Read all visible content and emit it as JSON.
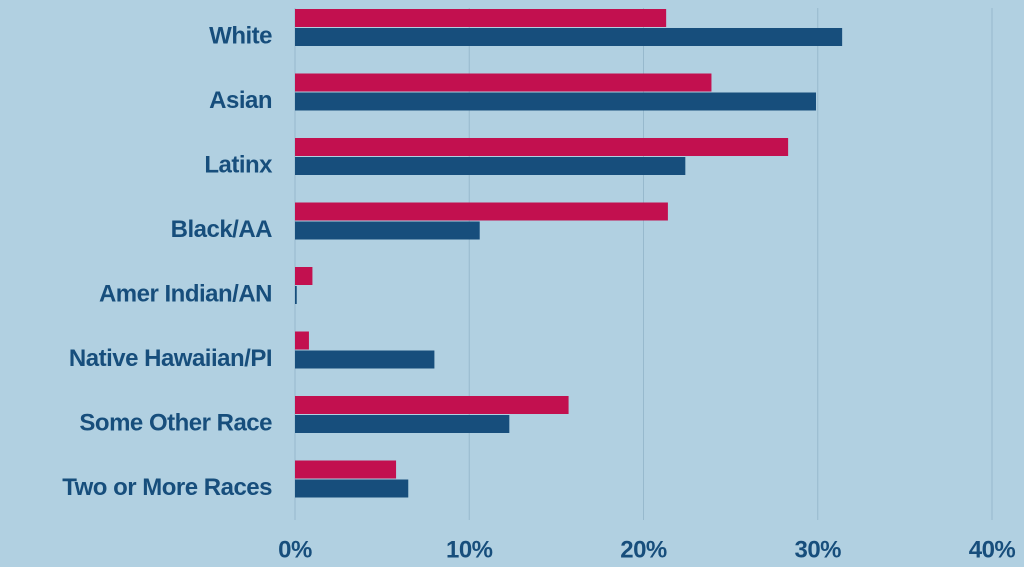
{
  "chart_data": {
    "type": "hbar",
    "categories": [
      "White",
      "Asian",
      "Latinx",
      "Black/AA",
      "Amer Indian/AN",
      "Native Hawaiian/PI",
      "Some Other Race",
      "Two or More Races"
    ],
    "series": [
      {
        "color": "#c2104f",
        "values": [
          21.3,
          23.9,
          28.3,
          21.4,
          1.0,
          0.8,
          15.7,
          5.8
        ]
      },
      {
        "color": "#174e7c",
        "values": [
          31.4,
          29.9,
          22.4,
          10.6,
          0.1,
          8.0,
          12.3,
          6.5
        ]
      }
    ],
    "xlim": [
      0,
      40
    ],
    "xticks": [
      {
        "value": 0,
        "label": "0%"
      },
      {
        "value": 10,
        "label": "10%"
      },
      {
        "value": 20,
        "label": "20%"
      },
      {
        "value": 30,
        "label": "30%"
      },
      {
        "value": 40,
        "label": "40%"
      }
    ],
    "grid": true
  }
}
